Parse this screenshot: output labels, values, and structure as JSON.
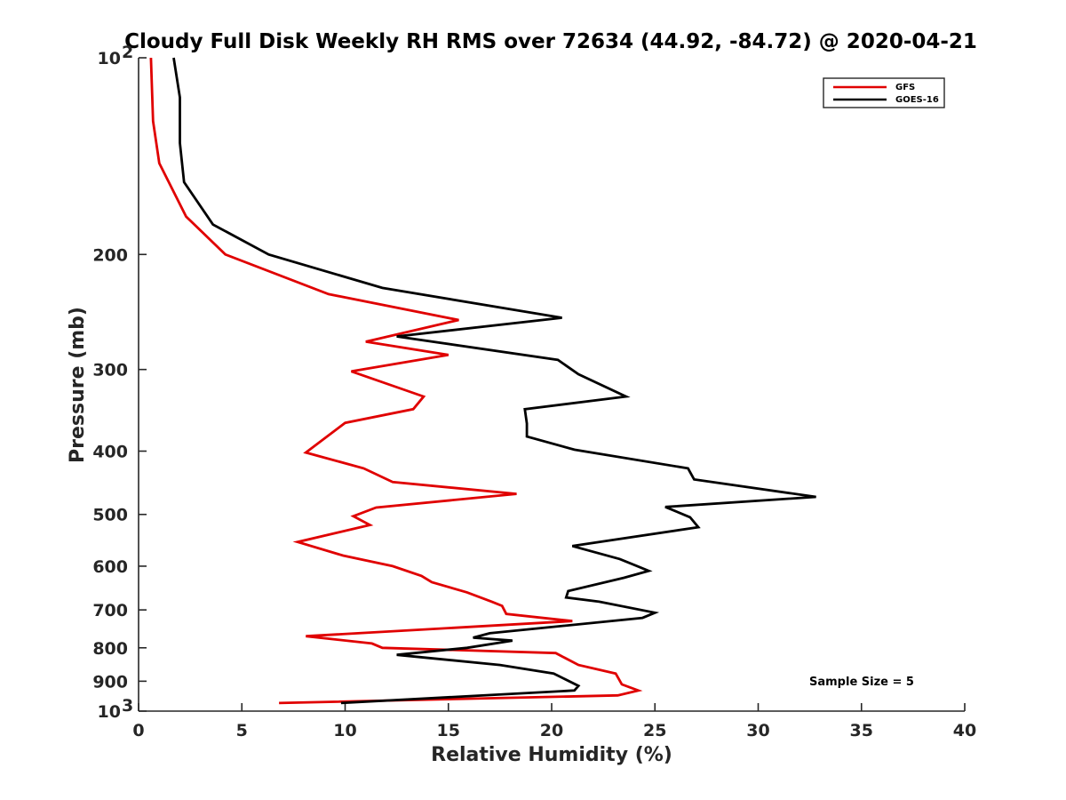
{
  "chart_data": {
    "type": "line",
    "title": "Cloudy Full Disk Weekly RH RMS over 72634 (44.92, -84.72) @ 2020-04-21",
    "xlabel": "Relative Humidity (%)",
    "ylabel": "Pressure (mb)",
    "xlim": [
      0,
      40
    ],
    "ylim": [
      100,
      1000
    ],
    "y_scale": "log",
    "y_reversed": true,
    "grid": false,
    "legend_position": "top-right",
    "x_ticks": [
      "0",
      "5",
      "10",
      "15",
      "20",
      "25",
      "30",
      "35",
      "40"
    ],
    "y_ticks": [
      {
        "value": 100,
        "label": "10",
        "sup": "2"
      },
      {
        "value": 200,
        "label": "200"
      },
      {
        "value": 300,
        "label": "300"
      },
      {
        "value": 400,
        "label": "400"
      },
      {
        "value": 500,
        "label": "500"
      },
      {
        "value": 600,
        "label": "600"
      },
      {
        "value": 700,
        "label": "700"
      },
      {
        "value": 800,
        "label": "800"
      },
      {
        "value": 900,
        "label": "900"
      },
      {
        "value": 1000,
        "label": "10",
        "sup": "3"
      }
    ],
    "annotation": "Sample Size = 5",
    "series": [
      {
        "name": "GFS",
        "color": "#e00000",
        "points": [
          [
            0.6,
            100
          ],
          [
            0.7,
            125
          ],
          [
            1.0,
            145
          ],
          [
            2.3,
            175
          ],
          [
            4.2,
            200
          ],
          [
            9.2,
            230
          ],
          [
            15.5,
            252
          ],
          [
            11.0,
            272
          ],
          [
            15.0,
            285
          ],
          [
            10.3,
            302
          ],
          [
            13.8,
            330
          ],
          [
            13.3,
            345
          ],
          [
            10.0,
            362
          ],
          [
            8.1,
            402
          ],
          [
            10.9,
            425
          ],
          [
            12.3,
            446
          ],
          [
            18.3,
            465
          ],
          [
            11.5,
            488
          ],
          [
            10.4,
            503
          ],
          [
            11.2,
            519
          ],
          [
            7.7,
            551
          ],
          [
            9.9,
            578
          ],
          [
            12.3,
            600
          ],
          [
            13.7,
            621
          ],
          [
            14.2,
            635
          ],
          [
            15.9,
            658
          ],
          [
            17.1,
            680
          ],
          [
            17.6,
            690
          ],
          [
            17.8,
            710
          ],
          [
            21.0,
            728
          ],
          [
            8.1,
            768
          ],
          [
            11.3,
            788
          ],
          [
            11.8,
            800
          ],
          [
            20.2,
            815
          ],
          [
            21.3,
            850
          ],
          [
            23.1,
            876
          ],
          [
            23.4,
            910
          ],
          [
            24.2,
            930
          ],
          [
            23.2,
            946
          ],
          [
            6.8,
            972
          ]
        ]
      },
      {
        "name": "GOES-16",
        "color": "#000000",
        "points": [
          [
            1.7,
            100
          ],
          [
            2.0,
            115
          ],
          [
            2.0,
            135
          ],
          [
            2.2,
            155
          ],
          [
            3.6,
            180
          ],
          [
            6.3,
            200
          ],
          [
            11.8,
            225
          ],
          [
            20.5,
            250
          ],
          [
            12.5,
            267
          ],
          [
            20.3,
            290
          ],
          [
            21.3,
            305
          ],
          [
            23.6,
            330
          ],
          [
            18.7,
            345
          ],
          [
            18.8,
            363
          ],
          [
            18.8,
            380
          ],
          [
            21.1,
            398
          ],
          [
            26.6,
            425
          ],
          [
            26.9,
            442
          ],
          [
            32.8,
            470
          ],
          [
            25.5,
            487
          ],
          [
            26.7,
            505
          ],
          [
            27.1,
            523
          ],
          [
            21.0,
            559
          ],
          [
            23.3,
            585
          ],
          [
            24.7,
            610
          ],
          [
            23.5,
            625
          ],
          [
            20.8,
            655
          ],
          [
            20.7,
            670
          ],
          [
            22.3,
            680
          ],
          [
            25.0,
            707
          ],
          [
            24.4,
            720
          ],
          [
            17.0,
            760
          ],
          [
            16.2,
            772
          ],
          [
            18.1,
            780
          ],
          [
            15.9,
            800
          ],
          [
            12.5,
            820
          ],
          [
            17.5,
            850
          ],
          [
            20.1,
            876
          ],
          [
            21.3,
            915
          ],
          [
            21.1,
            930
          ],
          [
            9.8,
            972
          ]
        ]
      }
    ]
  }
}
